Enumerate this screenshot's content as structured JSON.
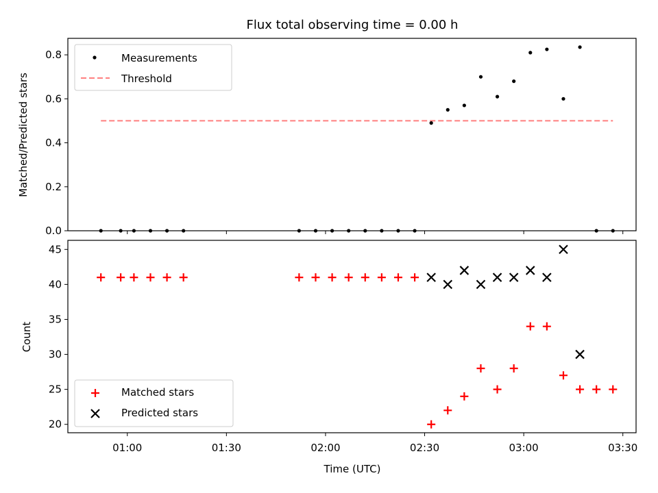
{
  "chart_data": [
    {
      "type": "scatter",
      "title": "Flux total observing time = 0.00 h",
      "xlabel": "",
      "ylabel": "Matched/Predicted stars",
      "ylim": [
        0.0,
        0.875
      ],
      "yticks": [
        0.0,
        0.2,
        0.4,
        0.6,
        0.8
      ],
      "ytick_labels": [
        "0.0",
        "0.2",
        "0.4",
        "0.6",
        "0.8"
      ],
      "grid": false,
      "legend": "upper-left",
      "series": [
        {
          "name": "Measurements",
          "marker": "dot",
          "color": "#000000",
          "x": [
            "00:52",
            "00:58",
            "01:02",
            "01:07",
            "01:12",
            "01:17",
            "01:52",
            "01:57",
            "02:02",
            "02:07",
            "02:12",
            "02:17",
            "02:22",
            "02:27",
            "02:32",
            "02:37",
            "02:42",
            "02:47",
            "02:52",
            "02:57",
            "03:02",
            "03:07",
            "03:12",
            "03:17",
            "03:22",
            "03:27"
          ],
          "y": [
            0,
            0,
            0,
            0,
            0,
            0,
            0,
            0,
            0,
            0,
            0,
            0,
            0,
            0,
            0.49,
            0.55,
            0.57,
            0.7,
            0.61,
            0.68,
            0.81,
            0.825,
            0.6,
            0.835,
            0,
            0
          ]
        },
        {
          "name": "Threshold",
          "style": "dashed-line",
          "color": "#ff7f7f",
          "x": [
            "00:52",
            "03:27"
          ],
          "y": [
            0.5,
            0.5
          ]
        }
      ]
    },
    {
      "type": "scatter",
      "xlabel": "Time (UTC)",
      "ylabel": "Count",
      "xlim": [
        "00:42",
        "03:34"
      ],
      "ylim": [
        18.8,
        46.3
      ],
      "xticks": [
        "01:00",
        "01:30",
        "02:00",
        "02:30",
        "03:00",
        "03:30"
      ],
      "yticks": [
        20,
        25,
        30,
        35,
        40,
        45
      ],
      "ytick_labels": [
        "20",
        "25",
        "30",
        "35",
        "40",
        "45"
      ],
      "grid": false,
      "legend": "lower-left",
      "series": [
        {
          "name": "Matched stars",
          "marker": "plus",
          "color": "#ff0000",
          "x": [
            "00:52",
            "00:58",
            "01:02",
            "01:07",
            "01:12",
            "01:17",
            "01:52",
            "01:57",
            "02:02",
            "02:07",
            "02:12",
            "02:17",
            "02:22",
            "02:27",
            "02:32",
            "02:37",
            "02:42",
            "02:47",
            "02:52",
            "02:57",
            "03:02",
            "03:07",
            "03:12",
            "03:17",
            "03:22",
            "03:27"
          ],
          "y": [
            41,
            41,
            41,
            41,
            41,
            41,
            41,
            41,
            41,
            41,
            41,
            41,
            41,
            41,
            20,
            22,
            24,
            28,
            25,
            28,
            34,
            34,
            27,
            25,
            25,
            25
          ]
        },
        {
          "name": "Predicted stars",
          "marker": "x",
          "color": "#000000",
          "x": [
            "02:32",
            "02:37",
            "02:42",
            "02:47",
            "02:52",
            "02:57",
            "03:02",
            "03:07",
            "03:12",
            "03:17"
          ],
          "y": [
            41,
            40,
            42,
            40,
            41,
            41,
            42,
            41,
            45,
            30
          ]
        }
      ]
    }
  ]
}
